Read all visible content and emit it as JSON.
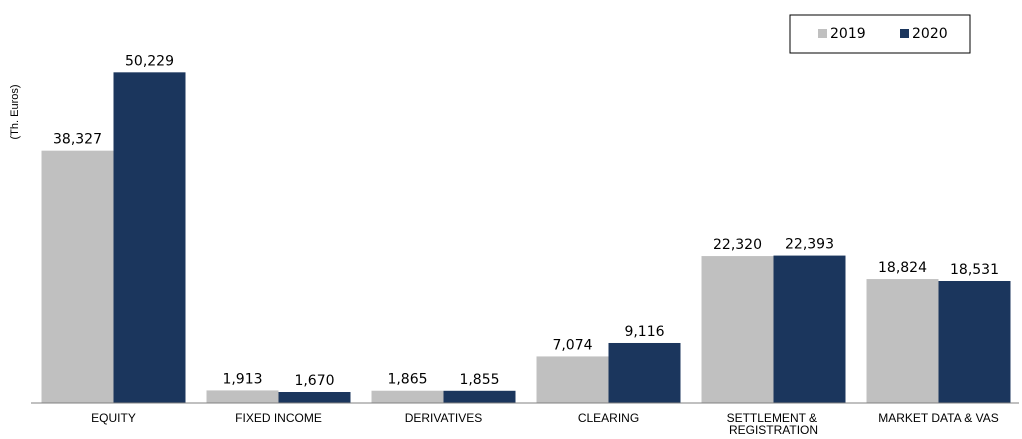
{
  "chart_data": {
    "type": "bar",
    "y_label": "(Th. Euros)",
    "categories": [
      "EQUITY",
      "FIXED INCOME",
      "DERIVATIVES",
      "CLEARING",
      "SETTLEMENT & REGISTRATION",
      "MARKET DATA & VAS"
    ],
    "series": [
      {
        "name": "2019",
        "color": "#c0c0c0",
        "values": [
          38327,
          1913,
          1865,
          7074,
          22320,
          18824
        ],
        "value_labels": [
          "38,327",
          "1,913",
          "1,865",
          "7,074",
          "22,320",
          "18,824"
        ]
      },
      {
        "name": "2020",
        "color": "#1b365d",
        "values": [
          50229,
          1670,
          1855,
          9116,
          22393,
          18531
        ],
        "value_labels": [
          "50,229",
          "1,670",
          "1,855",
          "9,116",
          "22,393",
          "18,531"
        ]
      }
    ],
    "ylim": [
      0,
      60000
    ],
    "legend": "top-right"
  }
}
